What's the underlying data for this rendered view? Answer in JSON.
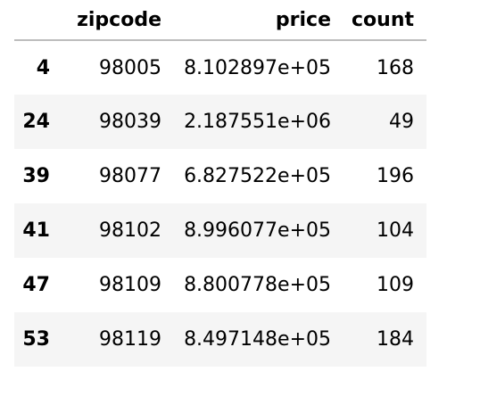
{
  "table": {
    "columns": [
      "zipcode",
      "price",
      "count"
    ],
    "rows": [
      {
        "index": "4",
        "zipcode": "98005",
        "price": "8.102897e+05",
        "count": "168"
      },
      {
        "index": "24",
        "zipcode": "98039",
        "price": "2.187551e+06",
        "count": "49"
      },
      {
        "index": "39",
        "zipcode": "98077",
        "price": "6.827522e+05",
        "count": "196"
      },
      {
        "index": "41",
        "zipcode": "98102",
        "price": "8.996077e+05",
        "count": "104"
      },
      {
        "index": "47",
        "zipcode": "98109",
        "price": "8.800778e+05",
        "count": "109"
      },
      {
        "index": "53",
        "zipcode": "98119",
        "price": "8.497148e+05",
        "count": "184"
      }
    ]
  },
  "colors": {
    "stripe": "#f5f5f5",
    "header_rule": "#bdbdbd",
    "text": "#000000"
  }
}
